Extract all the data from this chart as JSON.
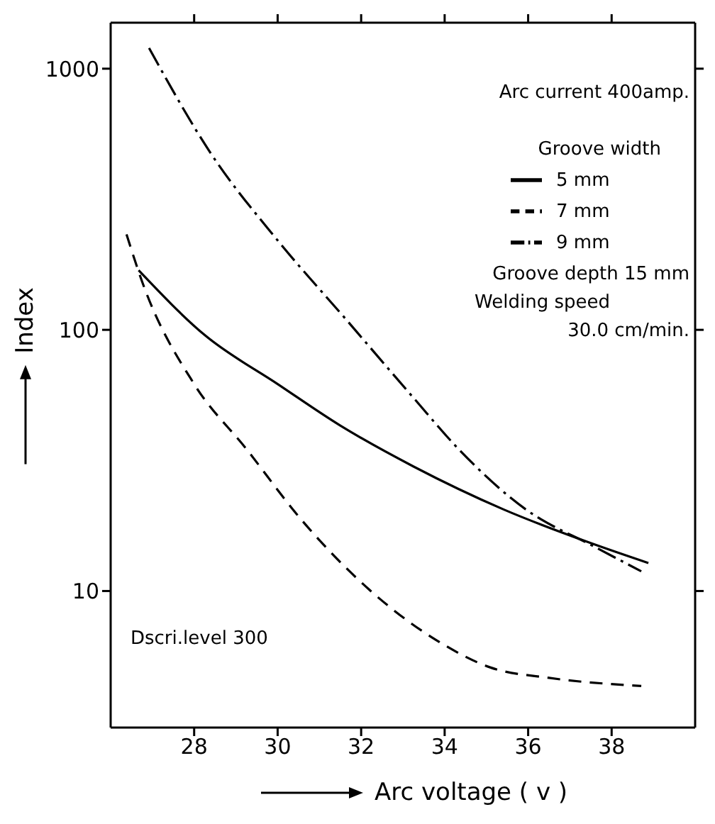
{
  "chart_data": {
    "type": "line",
    "xlabel": "Arc voltage ( v )",
    "ylabel": "Index",
    "legend_title": "Groove width",
    "log": "y",
    "xlim": [
      26,
      40
    ],
    "xticks": [
      28,
      30,
      32,
      34,
      36,
      38
    ],
    "ylim": [
      3,
      1500
    ],
    "yticks": [
      10,
      100,
      1000
    ],
    "legend": "top right",
    "marker": "none",
    "annotations": [
      "Arc current 400amp.",
      "Groove depth 15 mm",
      "Welding speed",
      "30.0 cm/min.",
      "Dscri.level 300"
    ],
    "series": [
      {
        "name": "5 mm",
        "color": "#000000",
        "line_style": "solid",
        "x": [
          26.67,
          28.27,
          30.0,
          31.5,
          33.25,
          35.42,
          37.58,
          38.88
        ],
        "values": [
          169,
          95,
          62,
          43,
          30,
          20.5,
          15.1,
          12.8
        ]
      },
      {
        "name": "7 mm",
        "color": "#000000",
        "line_style": "dashed",
        "x": [
          26.38,
          26.76,
          28.0,
          29.25,
          30.55,
          32.17,
          33.79,
          35.09,
          36.5,
          38.71
        ],
        "values": [
          232,
          152,
          62,
          35,
          18.9,
          10.2,
          6.5,
          5.1,
          4.65,
          4.33
        ]
      },
      {
        "name": "9 mm",
        "color": "#000000",
        "line_style": "dashdot",
        "x": [
          26.92,
          28.38,
          30.0,
          31.63,
          33.25,
          34.33,
          35.95,
          37.58,
          38.71
        ],
        "values": [
          1200,
          479,
          220,
          110,
          55,
          35,
          20.5,
          14.8,
          11.9
        ]
      }
    ]
  }
}
